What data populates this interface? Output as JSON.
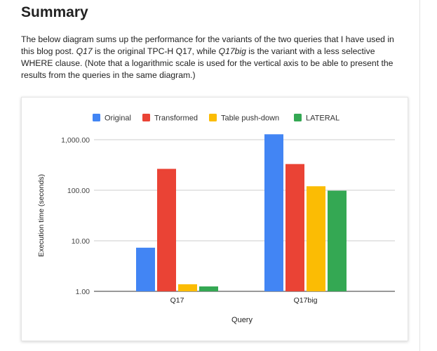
{
  "page": {
    "title": "Summary",
    "paragraph": {
      "t1": "The below diagram sums up the performance for the variants of the two queries that I have used in this blog post. ",
      "q17": "Q17",
      "t2": " is the original TPC-H Q17, while ",
      "q17big": "Q17big",
      "t3": " is the variant with a less selective WHERE clause. (Note that a logarithmic scale is used for the vertical axis to be able to present the results from the queries in the same diagram.)"
    }
  },
  "chart_data": {
    "type": "bar",
    "title": "",
    "xlabel": "Query",
    "ylabel": "Execution time (seconds)",
    "yscale": "log",
    "ylim": [
      1,
      1000
    ],
    "yticks": [
      1,
      10,
      100,
      1000
    ],
    "ytick_labels": [
      "1.00",
      "10.00",
      "100.00",
      "1,000.00"
    ],
    "categories": [
      "Q17",
      "Q17big"
    ],
    "series": [
      {
        "name": "Original",
        "color": "#4285F4",
        "values": [
          7.3,
          1280
        ]
      },
      {
        "name": "Transformed",
        "color": "#EA4335",
        "values": [
          265,
          330
        ]
      },
      {
        "name": "Table push-down",
        "color": "#FBBC04",
        "values": [
          1.38,
          120
        ]
      },
      {
        "name": "LATERAL",
        "color": "#34A853",
        "values": [
          1.25,
          98
        ]
      }
    ],
    "legend_position": "top",
    "grid": true
  }
}
